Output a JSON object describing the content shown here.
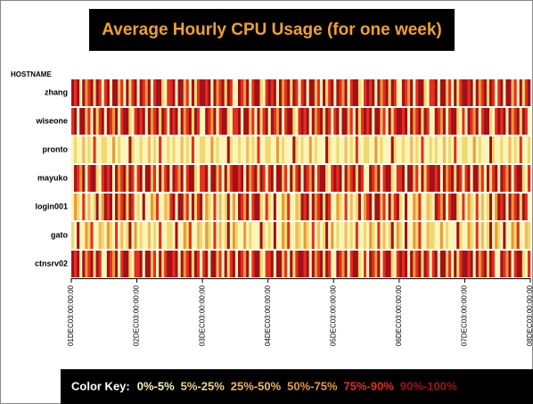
{
  "chart_data": {
    "type": "heatmap",
    "title": "Average Hourly CPU Usage (for one week)",
    "y_label": "HOSTNAME",
    "categories": [
      "zhang",
      "wiseone",
      "pronto",
      "mayuko",
      "login001",
      "gato",
      "ctnsrv02"
    ],
    "xlim": [
      0,
      168
    ],
    "xticks": [
      {
        "value": 0,
        "label": "01DEC03:00:00:00"
      },
      {
        "value": 24,
        "label": "02DEC03:00:00:00"
      },
      {
        "value": 48,
        "label": "03DEC03:00:00:00"
      },
      {
        "value": 72,
        "label": "04DEC03:00:00:00"
      },
      {
        "value": 96,
        "label": "05DEC03:00:00:00"
      },
      {
        "value": 120,
        "label": "06DEC03:00:00:00"
      },
      {
        "value": 144,
        "label": "07DEC03:00:00:00"
      },
      {
        "value": 168,
        "label": "08DEC03:00:00:00"
      }
    ],
    "legend_title": "Color Key:",
    "legend": [
      {
        "label": "0%-5%",
        "min": 0,
        "max": 5,
        "color": "#fbf5b8"
      },
      {
        "label": "5%-25%",
        "min": 5,
        "max": 25,
        "color": "#f0d870"
      },
      {
        "label": "25%-50%",
        "min": 25,
        "max": 50,
        "color": "#f3b860"
      },
      {
        "label": "50%-75%",
        "min": 50,
        "max": 75,
        "color": "#e89a38"
      },
      {
        "label": "75%-90%",
        "min": 75,
        "max": 90,
        "color": "#e3301e"
      },
      {
        "label": "90%-100%",
        "min": 90,
        "max": 100,
        "color": "#a4101a"
      }
    ],
    "values": [
      [
        95,
        80,
        95,
        2,
        95,
        60,
        80,
        95,
        15,
        95,
        80,
        2,
        80,
        95,
        2,
        95,
        95,
        40,
        80,
        2,
        95,
        15,
        80,
        95,
        2,
        95,
        80,
        60,
        95,
        2,
        80,
        95,
        95,
        15,
        2,
        80,
        80,
        95,
        2,
        95,
        95,
        40,
        80,
        2,
        95,
        15,
        80,
        95,
        95,
        80,
        95,
        2,
        95,
        60,
        80,
        95,
        15,
        95,
        80,
        2,
        2,
        95,
        80,
        60,
        95,
        2,
        80,
        95,
        95,
        15,
        2,
        80,
        95,
        80,
        95,
        2,
        95,
        60,
        80,
        95,
        15,
        95,
        80,
        2,
        80,
        95,
        2,
        95,
        95,
        40,
        80,
        2,
        95,
        15,
        80,
        95,
        2,
        95,
        80,
        60,
        95,
        2,
        80,
        95,
        95,
        15,
        2,
        80,
        95,
        80,
        95,
        2,
        95,
        60,
        80,
        95,
        15,
        95,
        80,
        2,
        2,
        95,
        80,
        60,
        95,
        2,
        80,
        95,
        95,
        15,
        2,
        80,
        80,
        95,
        2,
        95,
        95,
        40,
        80,
        2,
        95,
        15,
        80,
        95,
        95,
        80,
        95,
        2,
        95,
        60,
        80,
        95,
        15,
        95,
        80,
        2,
        80,
        95,
        2,
        95,
        95,
        40,
        80,
        2,
        95,
        15,
        80,
        95
      ],
      [
        80,
        95,
        2,
        95,
        95,
        40,
        80,
        2,
        95,
        15,
        80,
        95,
        2,
        95,
        80,
        60,
        95,
        2,
        80,
        95,
        95,
        15,
        2,
        80,
        95,
        80,
        95,
        2,
        95,
        60,
        80,
        95,
        15,
        95,
        80,
        2,
        95,
        80,
        95,
        2,
        95,
        60,
        80,
        95,
        15,
        95,
        80,
        2,
        2,
        95,
        80,
        60,
        95,
        2,
        80,
        95,
        95,
        15,
        2,
        80,
        80,
        95,
        2,
        95,
        95,
        40,
        80,
        2,
        95,
        15,
        80,
        95,
        2,
        95,
        80,
        60,
        95,
        2,
        80,
        95,
        95,
        15,
        2,
        80,
        95,
        80,
        95,
        2,
        95,
        60,
        80,
        95,
        15,
        95,
        80,
        2,
        80,
        95,
        2,
        95,
        95,
        40,
        80,
        2,
        95,
        15,
        80,
        95,
        80,
        95,
        2,
        95,
        95,
        40,
        80,
        2,
        95,
        15,
        80,
        95,
        95,
        80,
        95,
        2,
        95,
        60,
        80,
        95,
        15,
        95,
        80,
        2,
        2,
        95,
        80,
        60,
        95,
        2,
        80,
        95,
        95,
        15,
        2,
        80,
        2,
        95,
        80,
        60,
        95,
        2,
        80,
        95,
        95,
        15,
        2,
        80,
        95,
        80,
        95,
        2,
        95,
        60,
        80,
        95,
        15,
        95,
        80,
        2
      ],
      [
        2,
        15,
        2,
        2,
        40,
        2,
        15,
        2,
        80,
        2,
        2,
        15,
        15,
        2,
        2,
        60,
        2,
        15,
        2,
        2,
        2,
        95,
        15,
        2,
        2,
        15,
        2,
        2,
        40,
        2,
        15,
        2,
        80,
        2,
        2,
        15,
        2,
        15,
        2,
        2,
        40,
        2,
        15,
        2,
        80,
        2,
        2,
        15,
        15,
        2,
        2,
        60,
        2,
        15,
        2,
        2,
        2,
        95,
        15,
        2,
        2,
        15,
        2,
        2,
        40,
        2,
        15,
        2,
        80,
        2,
        2,
        15,
        15,
        2,
        2,
        60,
        2,
        15,
        2,
        2,
        2,
        95,
        15,
        2,
        15,
        2,
        2,
        60,
        2,
        15,
        2,
        2,
        2,
        95,
        15,
        2,
        2,
        15,
        2,
        2,
        40,
        2,
        15,
        2,
        80,
        2,
        2,
        15,
        15,
        2,
        2,
        60,
        2,
        15,
        2,
        2,
        2,
        95,
        15,
        2,
        2,
        15,
        2,
        2,
        40,
        2,
        15,
        2,
        80,
        2,
        2,
        15,
        2,
        15,
        2,
        2,
        40,
        2,
        15,
        2,
        80,
        2,
        2,
        15,
        15,
        2,
        2,
        60,
        2,
        15,
        2,
        2,
        2,
        95,
        15,
        2,
        2,
        15,
        2,
        2,
        40,
        2,
        15,
        2,
        80,
        2,
        2,
        15
      ],
      [
        2,
        95,
        80,
        60,
        95,
        2,
        80,
        95,
        95,
        15,
        2,
        80,
        95,
        80,
        95,
        2,
        95,
        60,
        80,
        95,
        15,
        95,
        80,
        2,
        80,
        95,
        2,
        95,
        95,
        40,
        80,
        2,
        95,
        15,
        80,
        95,
        2,
        95,
        80,
        60,
        95,
        2,
        80,
        95,
        95,
        15,
        2,
        80,
        80,
        95,
        2,
        95,
        95,
        40,
        80,
        2,
        95,
        15,
        80,
        95,
        95,
        80,
        95,
        2,
        95,
        60,
        80,
        95,
        15,
        95,
        80,
        2,
        80,
        95,
        2,
        95,
        95,
        40,
        80,
        2,
        95,
        15,
        80,
        95,
        2,
        95,
        80,
        60,
        95,
        2,
        80,
        95,
        95,
        15,
        2,
        80,
        95,
        80,
        95,
        2,
        95,
        60,
        80,
        95,
        15,
        95,
        80,
        2,
        2,
        95,
        80,
        60,
        95,
        2,
        80,
        95,
        95,
        15,
        2,
        80,
        80,
        95,
        2,
        95,
        95,
        40,
        80,
        2,
        95,
        15,
        80,
        95,
        95,
        80,
        95,
        2,
        95,
        60,
        80,
        95,
        15,
        95,
        80,
        2,
        80,
        95,
        2,
        95,
        95,
        40,
        80,
        2,
        95,
        15,
        80,
        95,
        2,
        95,
        80,
        60,
        95,
        2,
        80,
        95,
        95,
        15,
        2,
        80
      ],
      [
        2,
        60,
        15,
        2,
        80,
        2,
        40,
        2,
        15,
        95,
        2,
        60,
        95,
        80,
        95,
        2,
        95,
        60,
        80,
        95,
        15,
        95,
        80,
        2,
        15,
        2,
        95,
        2,
        2,
        60,
        15,
        80,
        2,
        2,
        40,
        15,
        80,
        95,
        2,
        95,
        95,
        40,
        80,
        2,
        95,
        15,
        80,
        95,
        2,
        60,
        15,
        2,
        80,
        2,
        40,
        2,
        15,
        95,
        2,
        60,
        2,
        95,
        80,
        60,
        95,
        2,
        80,
        95,
        95,
        15,
        2,
        80,
        15,
        2,
        95,
        2,
        2,
        60,
        15,
        80,
        2,
        2,
        40,
        15,
        95,
        80,
        95,
        2,
        95,
        60,
        80,
        95,
        15,
        95,
        80,
        2,
        2,
        60,
        15,
        2,
        80,
        2,
        40,
        2,
        15,
        95,
        2,
        60,
        80,
        95,
        2,
        95,
        95,
        40,
        80,
        2,
        95,
        15,
        80,
        95,
        15,
        2,
        95,
        2,
        2,
        60,
        15,
        80,
        2,
        2,
        40,
        15,
        2,
        95,
        80,
        60,
        95,
        2,
        80,
        95,
        95,
        15,
        2,
        80,
        2,
        60,
        15,
        2,
        80,
        2,
        40,
        2,
        15,
        95,
        2,
        60,
        95,
        80,
        95,
        2,
        95,
        60,
        80,
        95,
        15,
        95,
        80,
        2
      ],
      [
        15,
        2,
        95,
        2,
        2,
        60,
        15,
        80,
        2,
        2,
        40,
        15,
        2,
        60,
        15,
        2,
        80,
        2,
        40,
        2,
        15,
        95,
        2,
        60,
        2,
        15,
        2,
        2,
        40,
        2,
        15,
        2,
        80,
        2,
        2,
        15,
        15,
        2,
        95,
        2,
        2,
        60,
        15,
        80,
        2,
        2,
        40,
        15,
        2,
        60,
        15,
        2,
        80,
        2,
        40,
        2,
        15,
        95,
        2,
        60,
        15,
        2,
        2,
        60,
        2,
        15,
        2,
        2,
        2,
        95,
        15,
        2,
        15,
        2,
        95,
        2,
        2,
        60,
        15,
        80,
        2,
        2,
        40,
        15,
        2,
        60,
        15,
        2,
        80,
        2,
        40,
        2,
        15,
        95,
        2,
        60,
        2,
        15,
        2,
        2,
        40,
        2,
        15,
        2,
        80,
        2,
        2,
        15,
        2,
        60,
        15,
        2,
        80,
        2,
        40,
        2,
        15,
        95,
        2,
        60,
        15,
        2,
        95,
        2,
        2,
        60,
        15,
        80,
        2,
        2,
        40,
        15,
        15,
        2,
        2,
        60,
        2,
        15,
        2,
        2,
        2,
        95,
        15,
        2,
        2,
        60,
        15,
        2,
        80,
        2,
        40,
        2,
        15,
        95,
        2,
        60,
        15,
        2,
        95,
        2,
        2,
        60,
        15,
        80,
        2,
        2,
        40,
        15
      ],
      [
        95,
        80,
        95,
        2,
        95,
        60,
        80,
        95,
        15,
        95,
        80,
        2,
        2,
        95,
        80,
        60,
        95,
        2,
        80,
        95,
        95,
        15,
        2,
        80,
        80,
        95,
        2,
        95,
        95,
        40,
        80,
        2,
        95,
        15,
        80,
        95,
        95,
        80,
        95,
        2,
        95,
        60,
        80,
        95,
        15,
        95,
        80,
        2,
        80,
        95,
        2,
        95,
        95,
        40,
        80,
        2,
        95,
        15,
        80,
        95,
        2,
        95,
        80,
        60,
        95,
        2,
        80,
        95,
        95,
        15,
        2,
        80,
        80,
        95,
        2,
        95,
        95,
        40,
        80,
        2,
        95,
        15,
        80,
        95,
        95,
        80,
        95,
        2,
        95,
        60,
        80,
        95,
        15,
        95,
        80,
        2,
        2,
        95,
        80,
        60,
        95,
        2,
        80,
        95,
        95,
        15,
        2,
        80,
        2,
        95,
        80,
        60,
        95,
        2,
        80,
        95,
        95,
        15,
        2,
        80,
        95,
        80,
        95,
        2,
        95,
        60,
        80,
        95,
        15,
        95,
        80,
        2,
        80,
        95,
        2,
        95,
        95,
        40,
        80,
        2,
        95,
        15,
        80,
        95,
        95,
        80,
        95,
        2,
        95,
        60,
        80,
        95,
        15,
        95,
        80,
        2,
        2,
        95,
        80,
        60,
        95,
        2,
        80,
        95,
        95,
        15,
        2,
        80
      ]
    ]
  }
}
